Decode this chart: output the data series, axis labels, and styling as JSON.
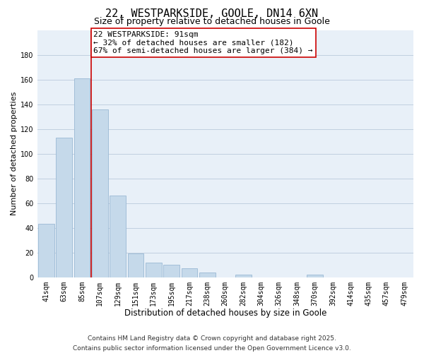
{
  "title": "22, WESTPARKSIDE, GOOLE, DN14 6XN",
  "subtitle": "Size of property relative to detached houses in Goole",
  "xlabel": "Distribution of detached houses by size in Goole",
  "ylabel": "Number of detached properties",
  "bar_labels": [
    "41sqm",
    "63sqm",
    "85sqm",
    "107sqm",
    "129sqm",
    "151sqm",
    "173sqm",
    "195sqm",
    "217sqm",
    "238sqm",
    "260sqm",
    "282sqm",
    "304sqm",
    "326sqm",
    "348sqm",
    "370sqm",
    "392sqm",
    "414sqm",
    "435sqm",
    "457sqm",
    "479sqm"
  ],
  "bar_values": [
    43,
    113,
    161,
    136,
    66,
    19,
    12,
    10,
    7,
    4,
    0,
    2,
    0,
    0,
    0,
    2,
    0,
    0,
    0,
    0,
    0
  ],
  "bar_color": "#c5d9ea",
  "bar_edge_color": "#9ab8d4",
  "vline_color": "#cc0000",
  "annotation_line1": "22 WESTPARKSIDE: 91sqm",
  "annotation_line2": "← 32% of detached houses are smaller (182)",
  "annotation_line3": "67% of semi-detached houses are larger (384) →",
  "annotation_box_color": "#ffffff",
  "annotation_box_edge": "#cc0000",
  "ylim": [
    0,
    200
  ],
  "yticks": [
    0,
    20,
    40,
    60,
    80,
    100,
    120,
    140,
    160,
    180
  ],
  "grid_color": "#c0cfe0",
  "bg_color": "#e8f0f8",
  "footer_line1": "Contains HM Land Registry data © Crown copyright and database right 2025.",
  "footer_line2": "Contains public sector information licensed under the Open Government Licence v3.0.",
  "title_fontsize": 11,
  "subtitle_fontsize": 9,
  "xlabel_fontsize": 8.5,
  "ylabel_fontsize": 8,
  "tick_fontsize": 7,
  "annotation_fontsize": 8,
  "footer_fontsize": 6.5
}
